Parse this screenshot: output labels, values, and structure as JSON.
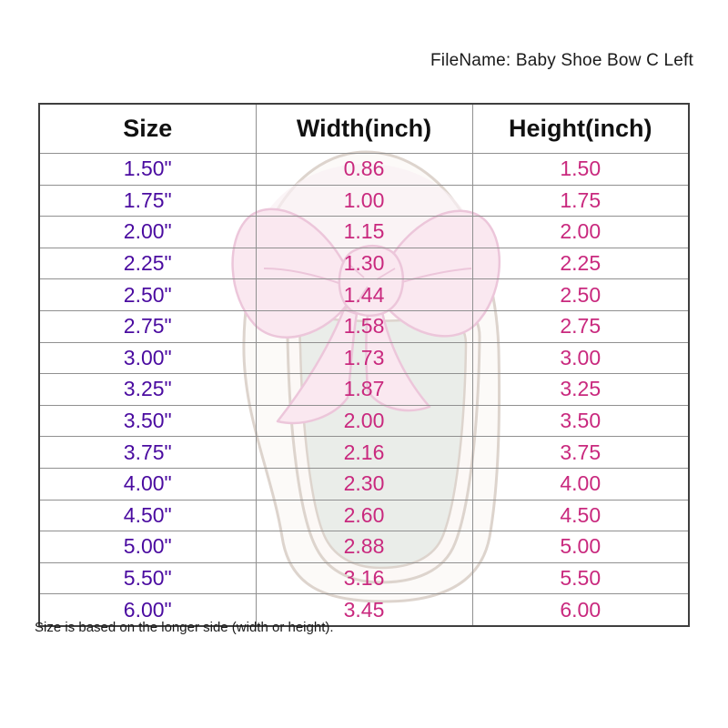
{
  "page": {
    "filename_label": "FileName: Baby Shoe Bow C Left",
    "footnote": "Size is based on the longer side (width or height)."
  },
  "table": {
    "columns": [
      "Size",
      "Width(inch)",
      "Height(inch)"
    ],
    "rows": [
      {
        "size": "1.50\"",
        "width": "0.86",
        "height": "1.50"
      },
      {
        "size": "1.75\"",
        "width": "1.00",
        "height": "1.75"
      },
      {
        "size": "2.00\"",
        "width": "1.15",
        "height": "2.00"
      },
      {
        "size": "2.25\"",
        "width": "1.30",
        "height": "2.25"
      },
      {
        "size": "2.50\"",
        "width": "1.44",
        "height": "2.50"
      },
      {
        "size": "2.75\"",
        "width": "1.58",
        "height": "2.75"
      },
      {
        "size": "3.00\"",
        "width": "1.73",
        "height": "3.00"
      },
      {
        "size": "3.25\"",
        "width": "1.87",
        "height": "3.25"
      },
      {
        "size": "3.50\"",
        "width": "2.00",
        "height": "3.50"
      },
      {
        "size": "3.75\"",
        "width": "2.16",
        "height": "3.75"
      },
      {
        "size": "4.00\"",
        "width": "2.30",
        "height": "4.00"
      },
      {
        "size": "4.50\"",
        "width": "2.60",
        "height": "4.50"
      },
      {
        "size": "5.00\"",
        "width": "2.88",
        "height": "5.00"
      },
      {
        "size": "5.50\"",
        "width": "3.16",
        "height": "5.50"
      },
      {
        "size": "6.00\"",
        "width": "3.45",
        "height": "6.00"
      }
    ]
  },
  "watermark": {
    "description": "baby shoe with pink bow (left shoe, top view)"
  },
  "colors": {
    "size_text": "#4A0BA0",
    "value_text": "#C9297E",
    "border_outer": "#3f3f3f",
    "border_inner": "#909090"
  }
}
